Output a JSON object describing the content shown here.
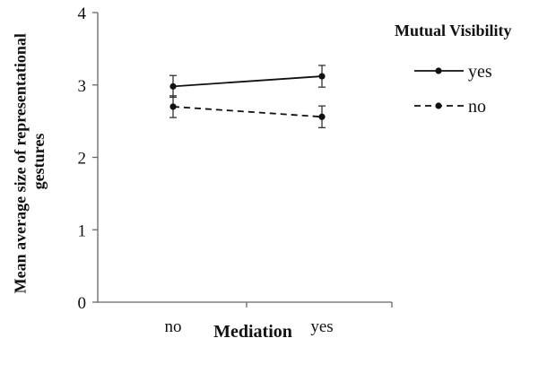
{
  "chart_data": {
    "type": "line",
    "xlabel": "Mediation",
    "ylabel": "Mean average size of representational gestures",
    "categories": [
      "no",
      "yes"
    ],
    "ylim": [
      0,
      4
    ],
    "yticks": [
      0,
      1,
      2,
      3,
      4
    ],
    "grid": false,
    "legend": {
      "title": "Mutual Visibility",
      "placement": "top-right"
    },
    "series": [
      {
        "name": "yes",
        "values": [
          2.98,
          3.12
        ],
        "error": [
          0.15,
          0.15
        ],
        "line_style": "solid",
        "color": "#111111"
      },
      {
        "name": "no",
        "values": [
          2.7,
          2.56
        ],
        "error": [
          0.15,
          0.15
        ],
        "line_style": "dashed",
        "color": "#111111"
      }
    ]
  }
}
